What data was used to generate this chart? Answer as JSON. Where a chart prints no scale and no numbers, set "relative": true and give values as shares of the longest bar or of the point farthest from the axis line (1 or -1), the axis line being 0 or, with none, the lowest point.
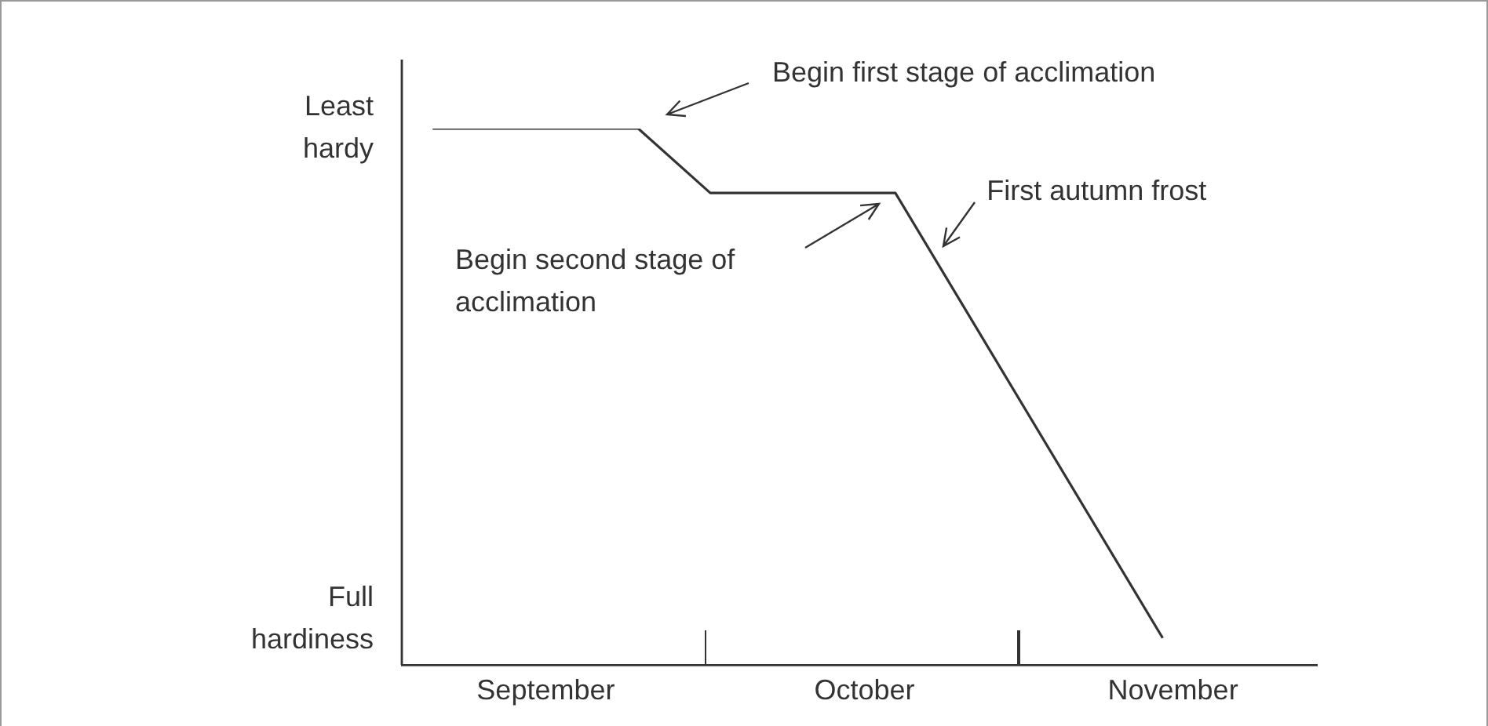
{
  "chart_data": {
    "type": "line",
    "x": [
      "--09-04",
      "--09-24",
      "--10-01",
      "--10-19",
      "--11-14"
    ],
    "values": [
      1,
      1,
      0.88,
      0.88,
      0.05
    ],
    "color": "#333333",
    "relative": true,
    "xlim": [
      "--09-01",
      "--11-29"
    ],
    "xticks": [
      {
        "value": "--09-15",
        "label": "September"
      },
      {
        "value": "--10-16",
        "label": "October"
      },
      {
        "value": "--11-15",
        "label": "November"
      }
    ],
    "annotations": [
      "Begin first stage of acclimation",
      {
        "text": "First autumn frost",
        "x": "--10-23",
        "y": 0.77
      },
      "Begin second stage of acclimation",
      "Least hardy",
      "Full hardiness"
    ],
    "marker": "none",
    "line_style": "solid",
    "grid": false,
    "legend": false
  }
}
